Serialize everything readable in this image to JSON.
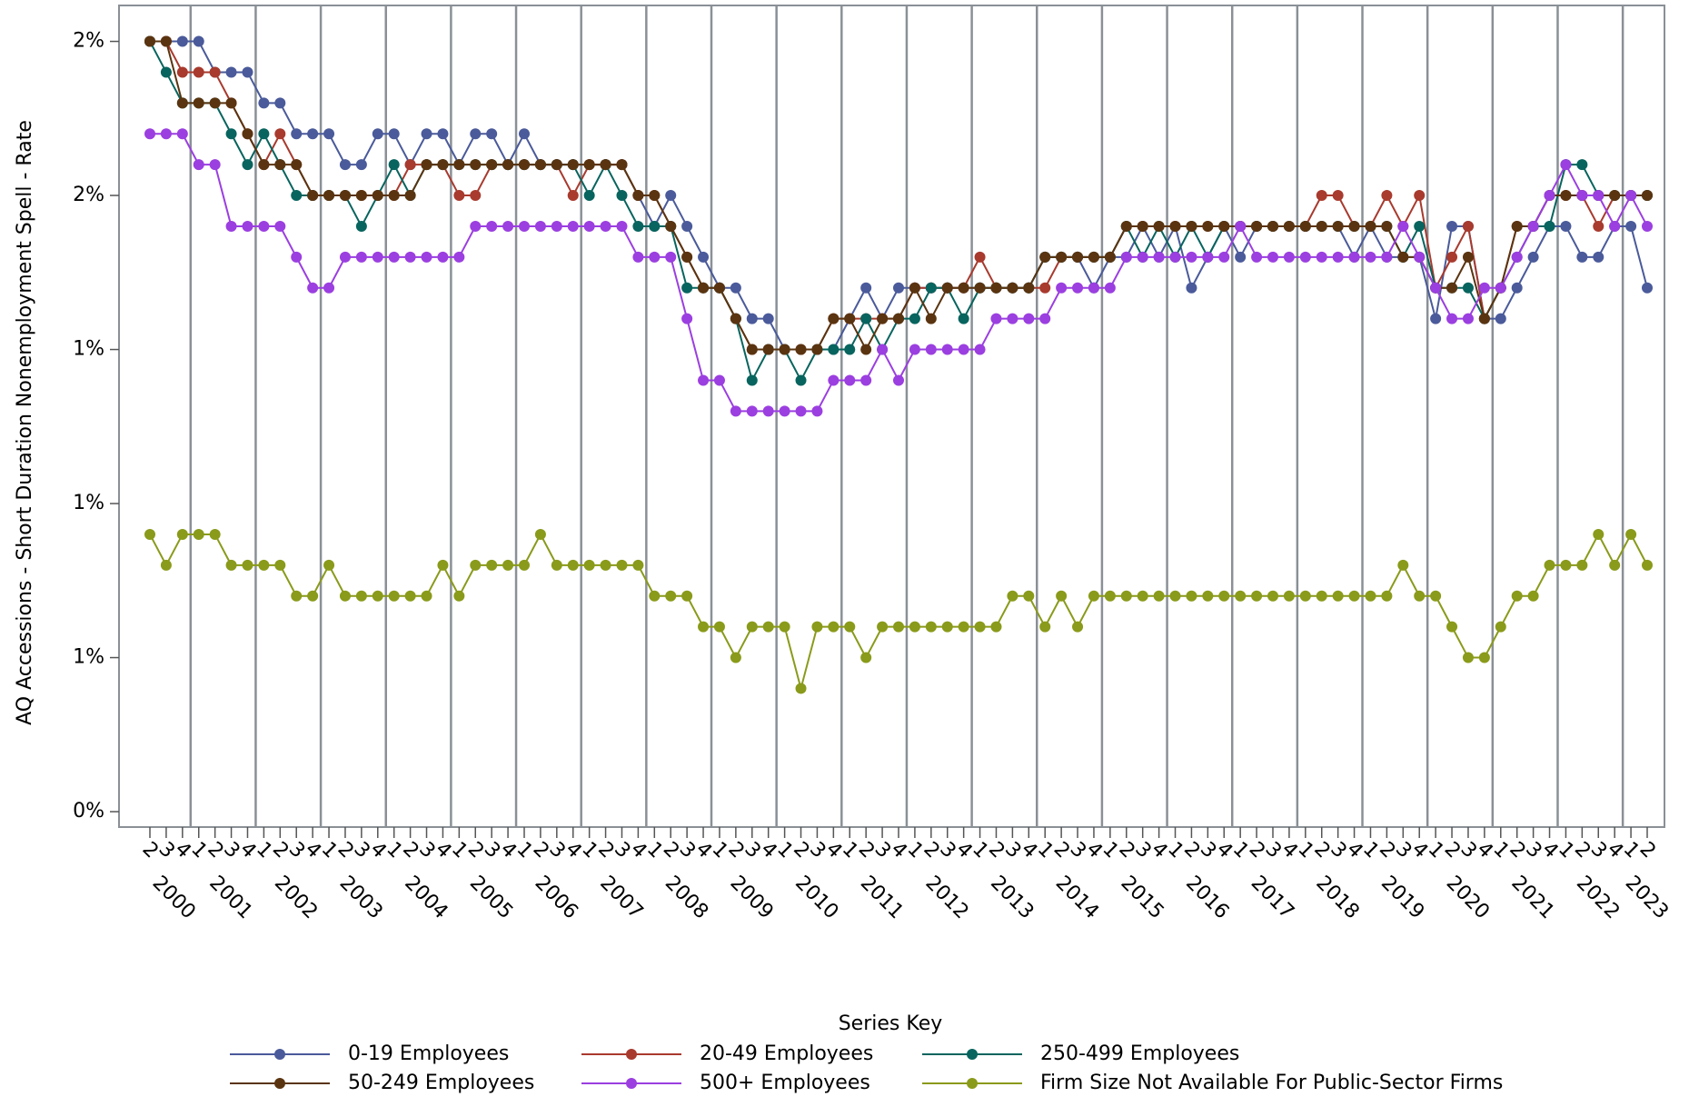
{
  "chart_data": {
    "type": "line",
    "y_label": "AQ Accessions - Short Duration Nonemployment Spell - Rate",
    "legend_title": "Series Key",
    "categories": [
      "2",
      "3",
      "4",
      "1",
      "2",
      "3",
      "4",
      "1",
      "2",
      "3",
      "4",
      "1",
      "2",
      "3",
      "4",
      "1",
      "2",
      "3",
      "4",
      "1",
      "2",
      "3",
      "4",
      "1",
      "2",
      "3",
      "4",
      "1",
      "2",
      "3",
      "4",
      "1",
      "2",
      "3",
      "4",
      "1",
      "2",
      "3",
      "4",
      "1",
      "2",
      "3",
      "4",
      "1",
      "2",
      "3",
      "4",
      "1",
      "2",
      "3",
      "4",
      "1",
      "2",
      "3",
      "4",
      "1",
      "2",
      "3",
      "4",
      "1",
      "2",
      "3",
      "4",
      "1",
      "2",
      "3",
      "4",
      "1",
      "2",
      "3",
      "4",
      "1",
      "2",
      "3",
      "4",
      "1",
      "2",
      "3",
      "4",
      "1",
      "2",
      "3",
      "4",
      "1",
      "2",
      "3",
      "4",
      "1",
      "2",
      "3",
      "4",
      "1",
      "2"
    ],
    "years": [
      "2000",
      "2001",
      "2002",
      "2003",
      "2004",
      "2005",
      "2006",
      "2007",
      "2008",
      "2009",
      "2010",
      "2011",
      "2012",
      "2013",
      "2014",
      "2015",
      "2016",
      "2017",
      "2018",
      "2019",
      "2020",
      "2021",
      "2022",
      "2023"
    ],
    "ylim": [
      0.37,
      1.97
    ],
    "yticks": [
      {
        "value": 0.4,
        "label": "0%"
      },
      {
        "value": 0.7,
        "label": "1%"
      },
      {
        "value": 1.0,
        "label": "1%"
      },
      {
        "value": 1.3,
        "label": "1%"
      },
      {
        "value": 1.6,
        "label": "2%"
      },
      {
        "value": 1.9,
        "label": "2%"
      }
    ],
    "series": [
      {
        "name": "0-19 Employees",
        "color": "#4a5a9a",
        "values": [
          1.9,
          1.9,
          1.9,
          1.9,
          1.84,
          1.84,
          1.84,
          1.78,
          1.78,
          1.72,
          1.72,
          1.72,
          1.66,
          1.66,
          1.72,
          1.72,
          1.66,
          1.72,
          1.72,
          1.66,
          1.72,
          1.72,
          1.66,
          1.72,
          1.66,
          1.66,
          1.66,
          1.66,
          1.66,
          1.66,
          1.6,
          1.54,
          1.6,
          1.54,
          1.48,
          1.42,
          1.42,
          1.36,
          1.36,
          1.3,
          1.3,
          1.3,
          1.3,
          1.36,
          1.42,
          1.36,
          1.42,
          1.42,
          1.42,
          1.42,
          1.42,
          1.42,
          1.42,
          1.42,
          1.42,
          1.48,
          1.48,
          1.48,
          1.42,
          1.48,
          1.48,
          1.54,
          1.48,
          1.54,
          1.42,
          1.48,
          1.54,
          1.48,
          1.54,
          1.54,
          1.54,
          1.54,
          1.54,
          1.54,
          1.48,
          1.54,
          1.48,
          1.48,
          1.48,
          1.36,
          1.54,
          1.54,
          1.36,
          1.36,
          1.42,
          1.48,
          1.54,
          1.54,
          1.48,
          1.48,
          1.54,
          1.54,
          1.42
        ]
      },
      {
        "name": "20-49 Employees",
        "color": "#a83a2e",
        "values": [
          1.9,
          1.9,
          1.84,
          1.84,
          1.84,
          1.78,
          1.72,
          1.66,
          1.72,
          1.66,
          1.6,
          1.6,
          1.6,
          1.6,
          1.6,
          1.6,
          1.66,
          1.66,
          1.66,
          1.6,
          1.6,
          1.66,
          1.66,
          1.66,
          1.66,
          1.66,
          1.6,
          1.66,
          1.66,
          1.66,
          1.6,
          1.6,
          1.54,
          1.48,
          1.42,
          1.42,
          1.36,
          1.3,
          1.3,
          1.3,
          1.3,
          1.3,
          1.36,
          1.36,
          1.36,
          1.36,
          1.36,
          1.42,
          1.42,
          1.42,
          1.42,
          1.48,
          1.42,
          1.42,
          1.42,
          1.42,
          1.48,
          1.48,
          1.48,
          1.48,
          1.54,
          1.54,
          1.54,
          1.54,
          1.54,
          1.54,
          1.54,
          1.54,
          1.54,
          1.54,
          1.54,
          1.54,
          1.6,
          1.6,
          1.54,
          1.54,
          1.6,
          1.54,
          1.6,
          1.42,
          1.48,
          1.54,
          1.36,
          1.42,
          1.54,
          1.54,
          1.6,
          1.6,
          1.6,
          1.54,
          1.6,
          1.6,
          1.6
        ]
      },
      {
        "name": "250-499 Employees",
        "color": "#08645e",
        "values": [
          1.9,
          1.84,
          1.78,
          1.78,
          1.78,
          1.72,
          1.66,
          1.72,
          1.66,
          1.6,
          1.6,
          1.6,
          1.6,
          1.54,
          1.6,
          1.66,
          1.6,
          1.66,
          1.66,
          1.66,
          1.66,
          1.66,
          1.66,
          1.66,
          1.66,
          1.66,
          1.66,
          1.6,
          1.66,
          1.6,
          1.54,
          1.54,
          1.54,
          1.42,
          1.42,
          1.42,
          1.36,
          1.24,
          1.3,
          1.3,
          1.24,
          1.3,
          1.3,
          1.3,
          1.36,
          1.3,
          1.36,
          1.36,
          1.42,
          1.42,
          1.36,
          1.42,
          1.42,
          1.42,
          1.42,
          1.48,
          1.48,
          1.48,
          1.48,
          1.48,
          1.54,
          1.48,
          1.54,
          1.48,
          1.54,
          1.48,
          1.54,
          1.54,
          1.54,
          1.54,
          1.54,
          1.54,
          1.54,
          1.54,
          1.54,
          1.54,
          1.54,
          1.48,
          1.54,
          1.42,
          1.42,
          1.42,
          1.36,
          1.42,
          1.48,
          1.54,
          1.54,
          1.66,
          1.66,
          1.6,
          1.6,
          1.6,
          1.6
        ]
      },
      {
        "name": "50-249 Employees",
        "color": "#5a3410",
        "values": [
          1.9,
          1.9,
          1.78,
          1.78,
          1.78,
          1.78,
          1.72,
          1.66,
          1.66,
          1.66,
          1.6,
          1.6,
          1.6,
          1.6,
          1.6,
          1.6,
          1.6,
          1.66,
          1.66,
          1.66,
          1.66,
          1.66,
          1.66,
          1.66,
          1.66,
          1.66,
          1.66,
          1.66,
          1.66,
          1.66,
          1.6,
          1.6,
          1.54,
          1.48,
          1.42,
          1.42,
          1.36,
          1.3,
          1.3,
          1.3,
          1.3,
          1.3,
          1.36,
          1.36,
          1.3,
          1.36,
          1.36,
          1.42,
          1.36,
          1.42,
          1.42,
          1.42,
          1.42,
          1.42,
          1.42,
          1.48,
          1.48,
          1.48,
          1.48,
          1.48,
          1.54,
          1.54,
          1.54,
          1.54,
          1.54,
          1.54,
          1.54,
          1.54,
          1.54,
          1.54,
          1.54,
          1.54,
          1.54,
          1.54,
          1.54,
          1.54,
          1.54,
          1.48,
          1.48,
          1.42,
          1.42,
          1.48,
          1.36,
          1.42,
          1.54,
          1.54,
          1.6,
          1.6,
          1.6,
          1.6,
          1.6,
          1.6,
          1.6
        ]
      },
      {
        "name": "500+ Employees",
        "color": "#9b3fe0",
        "values": [
          1.72,
          1.72,
          1.72,
          1.66,
          1.66,
          1.54,
          1.54,
          1.54,
          1.54,
          1.48,
          1.42,
          1.42,
          1.48,
          1.48,
          1.48,
          1.48,
          1.48,
          1.48,
          1.48,
          1.48,
          1.54,
          1.54,
          1.54,
          1.54,
          1.54,
          1.54,
          1.54,
          1.54,
          1.54,
          1.54,
          1.48,
          1.48,
          1.48,
          1.36,
          1.24,
          1.24,
          1.18,
          1.18,
          1.18,
          1.18,
          1.18,
          1.18,
          1.24,
          1.24,
          1.24,
          1.3,
          1.24,
          1.3,
          1.3,
          1.3,
          1.3,
          1.3,
          1.36,
          1.36,
          1.36,
          1.36,
          1.42,
          1.42,
          1.42,
          1.42,
          1.48,
          1.48,
          1.48,
          1.48,
          1.48,
          1.48,
          1.48,
          1.54,
          1.48,
          1.48,
          1.48,
          1.48,
          1.48,
          1.48,
          1.48,
          1.48,
          1.48,
          1.54,
          1.48,
          1.42,
          1.36,
          1.36,
          1.42,
          1.42,
          1.48,
          1.54,
          1.6,
          1.66,
          1.6,
          1.6,
          1.54,
          1.6,
          1.54
        ]
      },
      {
        "name": "Firm Size Not Available For Public-Sector Firms",
        "color": "#8a9a1a",
        "values": [
          0.94,
          0.88,
          0.94,
          0.94,
          0.94,
          0.88,
          0.88,
          0.88,
          0.88,
          0.82,
          0.82,
          0.88,
          0.82,
          0.82,
          0.82,
          0.82,
          0.82,
          0.82,
          0.88,
          0.82,
          0.88,
          0.88,
          0.88,
          0.88,
          0.94,
          0.88,
          0.88,
          0.88,
          0.88,
          0.88,
          0.88,
          0.82,
          0.82,
          0.82,
          0.76,
          0.76,
          0.7,
          0.76,
          0.76,
          0.76,
          0.64,
          0.76,
          0.76,
          0.76,
          0.7,
          0.76,
          0.76,
          0.76,
          0.76,
          0.76,
          0.76,
          0.76,
          0.76,
          0.82,
          0.82,
          0.76,
          0.82,
          0.76,
          0.82,
          0.82,
          0.82,
          0.82,
          0.82,
          0.82,
          0.82,
          0.82,
          0.82,
          0.82,
          0.82,
          0.82,
          0.82,
          0.82,
          0.82,
          0.82,
          0.82,
          0.82,
          0.82,
          0.88,
          0.82,
          0.82,
          0.76,
          0.7,
          0.7,
          0.76,
          0.82,
          0.82,
          0.88,
          0.88,
          0.88,
          0.94,
          0.88,
          0.94,
          0.88
        ]
      }
    ]
  }
}
